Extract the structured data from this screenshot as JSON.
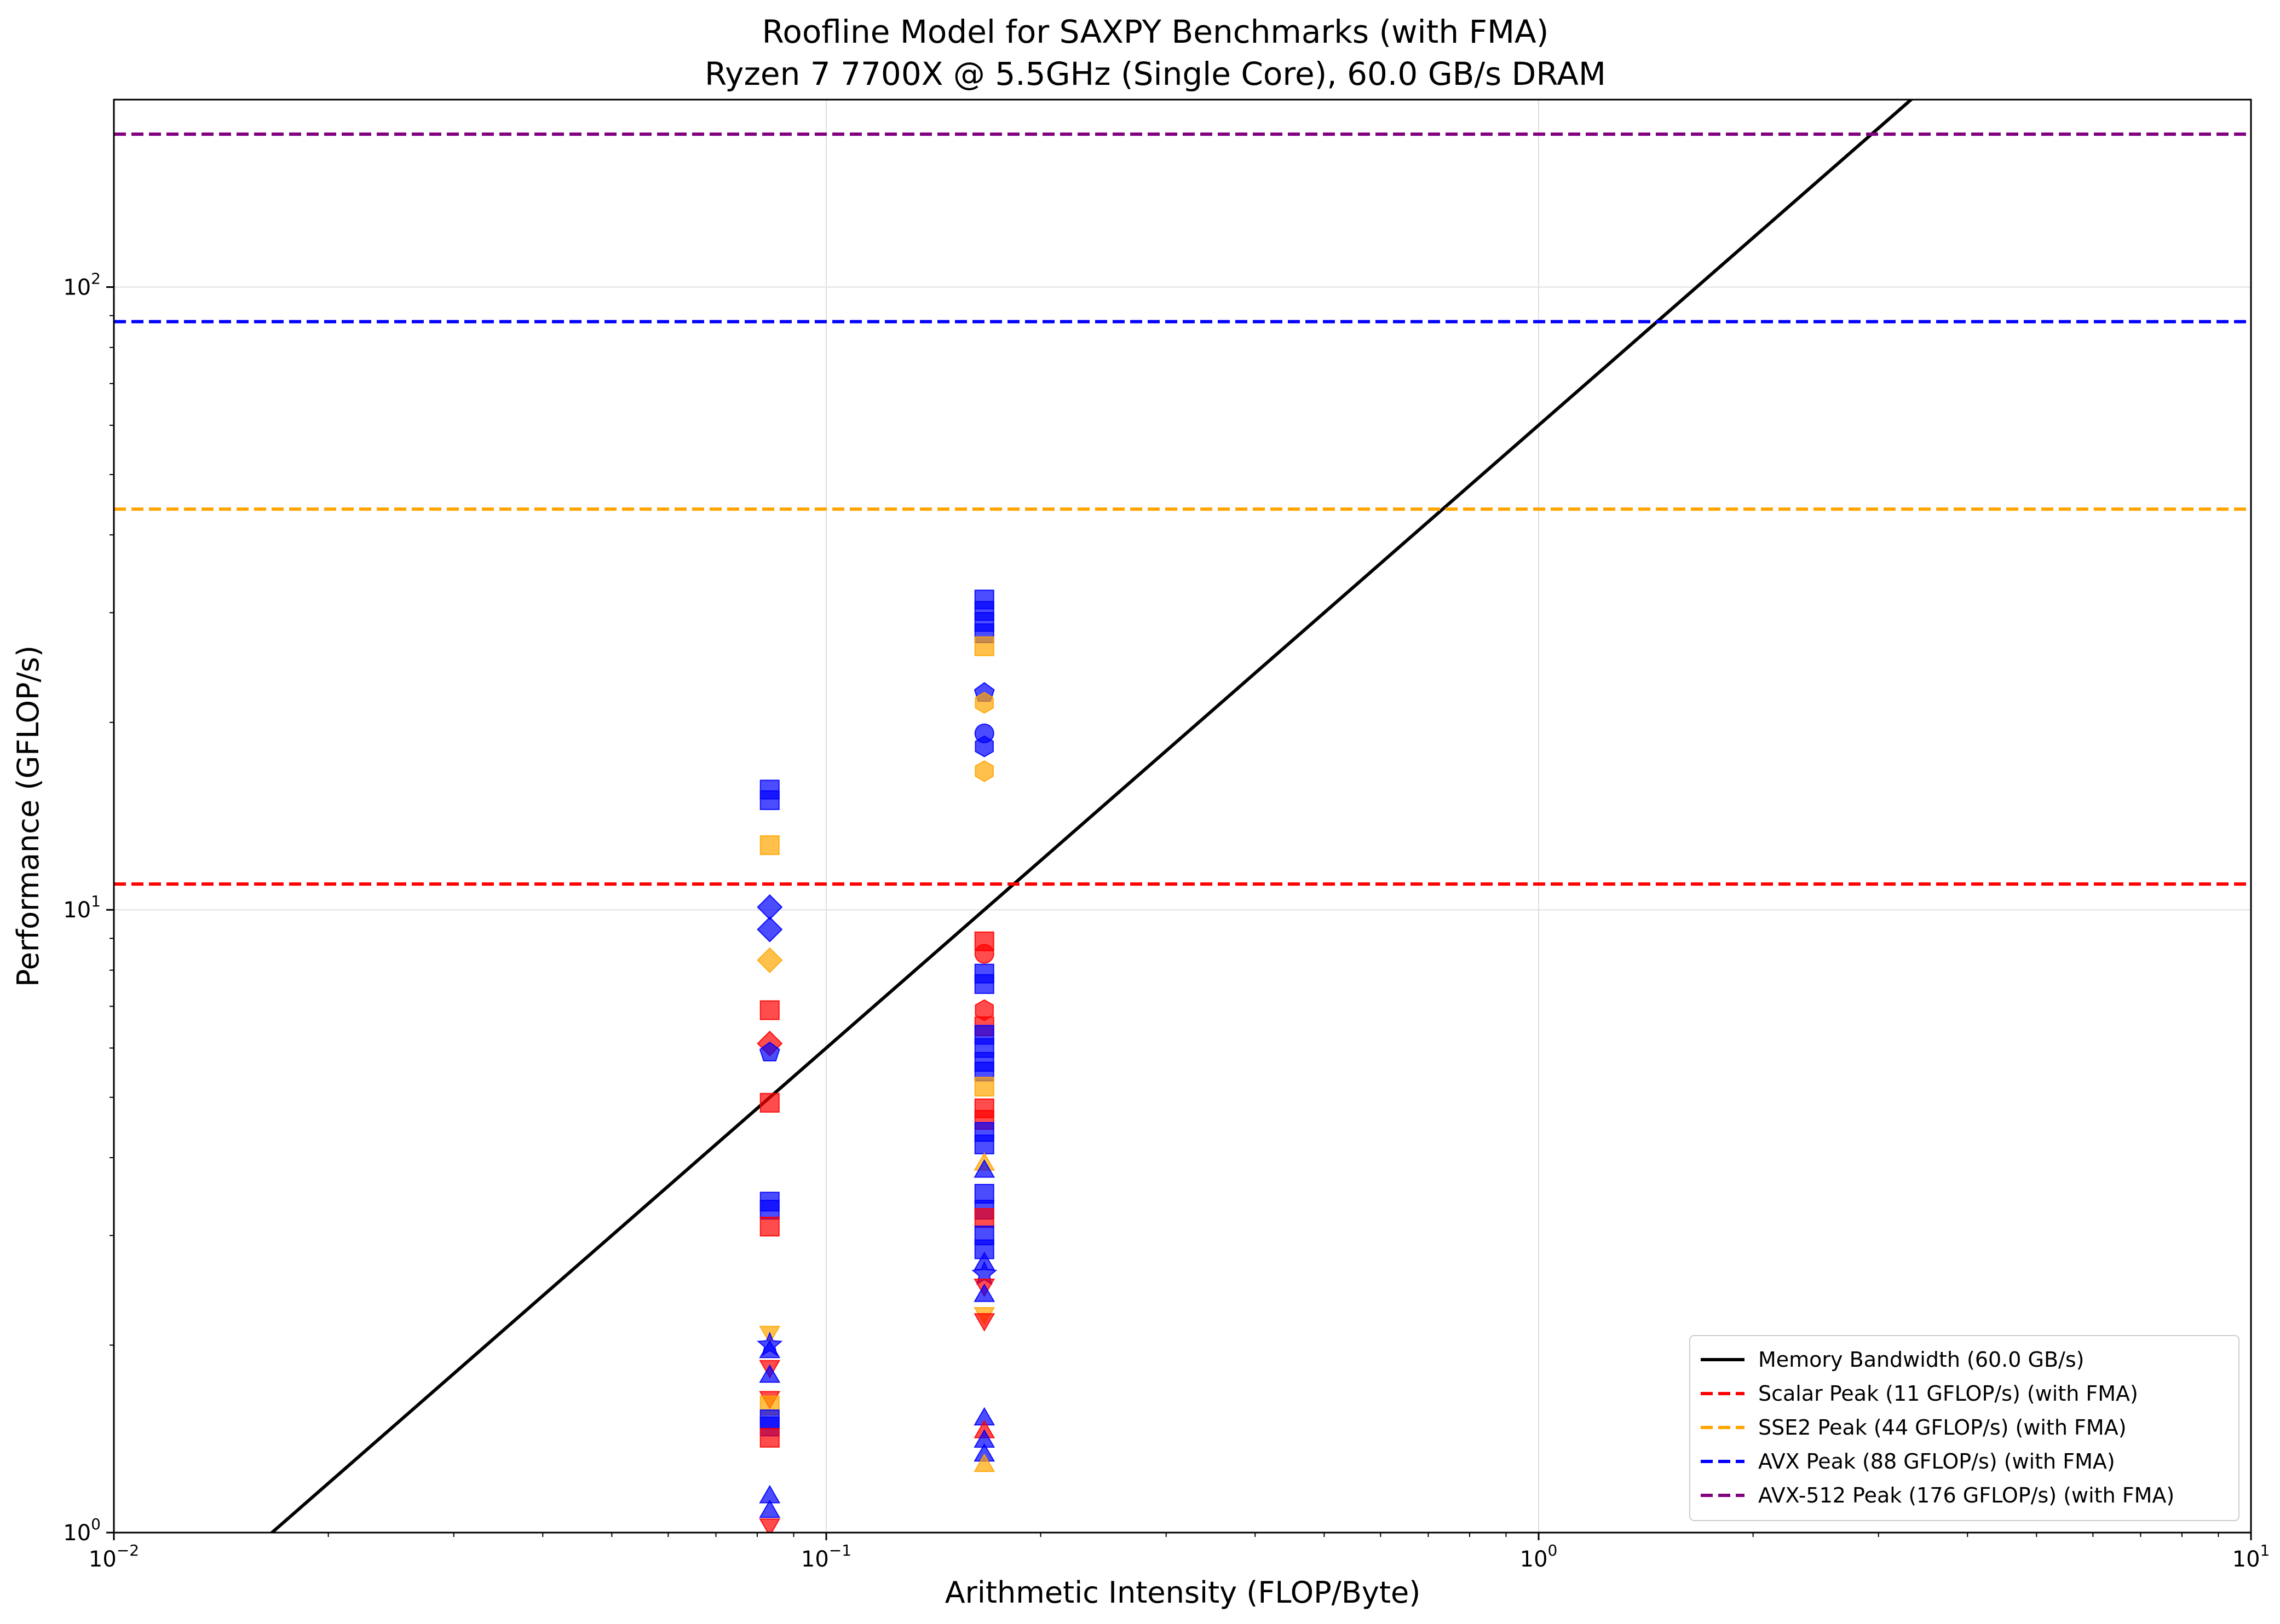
{
  "chart_data": {
    "type": "scatter",
    "title": "Roofline Model for SAXPY Benchmarks (with FMA)",
    "subtitle": "Ryzen 7 7700X @ 5.5GHz (Single Core), 60.0 GB/s DRAM",
    "xlabel": "Arithmetic Intensity (FLOP/Byte)",
    "ylabel": "Performance (GFLOP/s)",
    "x_scale": "log",
    "y_scale": "log",
    "xlim": [
      0.01,
      10
    ],
    "ylim": [
      1,
      200
    ],
    "grid": true,
    "legend_position": "lower-right",
    "x_ticks": [
      {
        "value": 0.01,
        "base": "10",
        "exp": "−2"
      },
      {
        "value": 0.1,
        "base": "10",
        "exp": "−1"
      },
      {
        "value": 1,
        "base": "10",
        "exp": "0"
      },
      {
        "value": 10,
        "base": "10",
        "exp": "1"
      }
    ],
    "y_ticks": [
      {
        "value": 1,
        "base": "10",
        "exp": "0"
      },
      {
        "value": 10,
        "base": "10",
        "exp": "1"
      },
      {
        "value": 100,
        "base": "10",
        "exp": "2"
      }
    ],
    "lines": [
      {
        "name": "Memory Bandwidth (60.0 GB/s)",
        "kind": "bandwidth",
        "bandwidth": 60.0,
        "color": "#000000",
        "dashed": false
      },
      {
        "name": "Scalar Peak (11 GFLOP/s) (with FMA)",
        "kind": "peak",
        "value": 11,
        "color": "#ff0000",
        "dashed": true
      },
      {
        "name": "SSE2 Peak (44 GFLOP/s) (with FMA)",
        "kind": "peak",
        "value": 44,
        "color": "#ffa500",
        "dashed": true
      },
      {
        "name": "AVX Peak (88 GFLOP/s) (with FMA)",
        "kind": "peak",
        "value": 88,
        "color": "#0000ff",
        "dashed": true
      },
      {
        "name": "AVX-512 Peak (176 GFLOP/s) (with FMA)",
        "kind": "peak",
        "value": 176,
        "color": "#800080",
        "dashed": true
      }
    ],
    "points": [
      {
        "x": 0.0833,
        "y": 15.6,
        "color": "#0000ff",
        "marker": "square"
      },
      {
        "x": 0.0833,
        "y": 15.0,
        "color": "#0000ff",
        "marker": "square"
      },
      {
        "x": 0.0833,
        "y": 12.7,
        "color": "#ffa500",
        "marker": "square"
      },
      {
        "x": 0.0833,
        "y": 10.1,
        "color": "#0000ff",
        "marker": "diamond"
      },
      {
        "x": 0.0833,
        "y": 9.3,
        "color": "#0000ff",
        "marker": "diamond"
      },
      {
        "x": 0.0833,
        "y": 8.3,
        "color": "#ffa500",
        "marker": "diamond"
      },
      {
        "x": 0.0833,
        "y": 6.9,
        "color": "#ff0000",
        "marker": "square"
      },
      {
        "x": 0.0833,
        "y": 6.1,
        "color": "#ff0000",
        "marker": "diamond"
      },
      {
        "x": 0.0833,
        "y": 5.9,
        "color": "#0000ff",
        "marker": "pentagon"
      },
      {
        "x": 0.0833,
        "y": 4.9,
        "color": "#ff0000",
        "marker": "square"
      },
      {
        "x": 0.0833,
        "y": 3.4,
        "color": "#0000ff",
        "marker": "square"
      },
      {
        "x": 0.0833,
        "y": 3.3,
        "color": "#0000ff",
        "marker": "square"
      },
      {
        "x": 0.0833,
        "y": 3.1,
        "color": "#ff0000",
        "marker": "square"
      },
      {
        "x": 0.0833,
        "y": 2.1,
        "color": "#ffa500",
        "marker": "triangle-down"
      },
      {
        "x": 0.0833,
        "y": 2.0,
        "color": "#0000ff",
        "marker": "star"
      },
      {
        "x": 0.0833,
        "y": 1.95,
        "color": "#0000ff",
        "marker": "triangle-up"
      },
      {
        "x": 0.0833,
        "y": 1.85,
        "color": "#ff0000",
        "marker": "triangle-down"
      },
      {
        "x": 0.0833,
        "y": 1.78,
        "color": "#0000ff",
        "marker": "triangle-up"
      },
      {
        "x": 0.0833,
        "y": 1.65,
        "color": "#ff0000",
        "marker": "triangle-down"
      },
      {
        "x": 0.0833,
        "y": 1.6,
        "color": "#ffa500",
        "marker": "square"
      },
      {
        "x": 0.0833,
        "y": 1.52,
        "color": "#0000ff",
        "marker": "square"
      },
      {
        "x": 0.0833,
        "y": 1.48,
        "color": "#0000ff",
        "marker": "square"
      },
      {
        "x": 0.0833,
        "y": 1.42,
        "color": "#ff0000",
        "marker": "square"
      },
      {
        "x": 0.0833,
        "y": 1.14,
        "color": "#0000ff",
        "marker": "triangle-up"
      },
      {
        "x": 0.0833,
        "y": 1.08,
        "color": "#0000ff",
        "marker": "triangle-up"
      },
      {
        "x": 0.0833,
        "y": 1.03,
        "color": "#ff0000",
        "marker": "triangle-down"
      },
      {
        "x": 0.1667,
        "y": 31.5,
        "color": "#0000ff",
        "marker": "square"
      },
      {
        "x": 0.1667,
        "y": 30.2,
        "color": "#0000ff",
        "marker": "square"
      },
      {
        "x": 0.1667,
        "y": 29.0,
        "color": "#0000ff",
        "marker": "square"
      },
      {
        "x": 0.1667,
        "y": 27.8,
        "color": "#0000ff",
        "marker": "square"
      },
      {
        "x": 0.1667,
        "y": 26.5,
        "color": "#ffa500",
        "marker": "square"
      },
      {
        "x": 0.1667,
        "y": 22.3,
        "color": "#0000ff",
        "marker": "pentagon"
      },
      {
        "x": 0.1667,
        "y": 21.5,
        "color": "#ffa500",
        "marker": "hexagon"
      },
      {
        "x": 0.1667,
        "y": 19.2,
        "color": "#0000ff",
        "marker": "circle"
      },
      {
        "x": 0.1667,
        "y": 18.3,
        "color": "#0000ff",
        "marker": "hexagon"
      },
      {
        "x": 0.1667,
        "y": 16.7,
        "color": "#ffa500",
        "marker": "hexagon"
      },
      {
        "x": 0.1667,
        "y": 8.9,
        "color": "#ff0000",
        "marker": "square"
      },
      {
        "x": 0.1667,
        "y": 8.5,
        "color": "#ff0000",
        "marker": "circle"
      },
      {
        "x": 0.1667,
        "y": 7.9,
        "color": "#0000ff",
        "marker": "square"
      },
      {
        "x": 0.1667,
        "y": 7.6,
        "color": "#0000ff",
        "marker": "square"
      },
      {
        "x": 0.1667,
        "y": 6.9,
        "color": "#ff0000",
        "marker": "hexagon"
      },
      {
        "x": 0.1667,
        "y": 6.5,
        "color": "#ff0000",
        "marker": "square"
      },
      {
        "x": 0.1667,
        "y": 6.3,
        "color": "#0000ff",
        "marker": "square"
      },
      {
        "x": 0.1667,
        "y": 6.0,
        "color": "#0000ff",
        "marker": "square"
      },
      {
        "x": 0.1667,
        "y": 5.7,
        "color": "#0000ff",
        "marker": "square"
      },
      {
        "x": 0.1667,
        "y": 5.5,
        "color": "#0000ff",
        "marker": "square"
      },
      {
        "x": 0.1667,
        "y": 5.2,
        "color": "#ffa500",
        "marker": "square"
      },
      {
        "x": 0.1667,
        "y": 4.8,
        "color": "#ff0000",
        "marker": "square"
      },
      {
        "x": 0.1667,
        "y": 4.6,
        "color": "#ff0000",
        "marker": "square"
      },
      {
        "x": 0.1667,
        "y": 4.4,
        "color": "#0000ff",
        "marker": "square"
      },
      {
        "x": 0.1667,
        "y": 4.2,
        "color": "#0000ff",
        "marker": "square"
      },
      {
        "x": 0.1667,
        "y": 3.9,
        "color": "#ffa500",
        "marker": "triangle-up"
      },
      {
        "x": 0.1667,
        "y": 3.8,
        "color": "#0000ff",
        "marker": "triangle-up"
      },
      {
        "x": 0.1667,
        "y": 3.5,
        "color": "#0000ff",
        "marker": "square"
      },
      {
        "x": 0.1667,
        "y": 3.3,
        "color": "#0000ff",
        "marker": "square"
      },
      {
        "x": 0.1667,
        "y": 3.2,
        "color": "#ff0000",
        "marker": "square"
      },
      {
        "x": 0.1667,
        "y": 3.0,
        "color": "#0000ff",
        "marker": "square"
      },
      {
        "x": 0.1667,
        "y": 2.85,
        "color": "#0000ff",
        "marker": "square"
      },
      {
        "x": 0.1667,
        "y": 2.7,
        "color": "#0000ff",
        "marker": "triangle-up"
      },
      {
        "x": 0.1667,
        "y": 2.6,
        "color": "#0000ff",
        "marker": "star"
      },
      {
        "x": 0.1667,
        "y": 2.5,
        "color": "#ff0000",
        "marker": "triangle-down"
      },
      {
        "x": 0.1667,
        "y": 2.4,
        "color": "#0000ff",
        "marker": "triangle-up"
      },
      {
        "x": 0.1667,
        "y": 2.25,
        "color": "#ffa500",
        "marker": "triangle-down"
      },
      {
        "x": 0.1667,
        "y": 2.2,
        "color": "#ff0000",
        "marker": "triangle-down"
      },
      {
        "x": 0.1667,
        "y": 1.52,
        "color": "#0000ff",
        "marker": "triangle-up"
      },
      {
        "x": 0.1667,
        "y": 1.45,
        "color": "#ff0000",
        "marker": "triangle-up"
      },
      {
        "x": 0.1667,
        "y": 1.4,
        "color": "#0000ff",
        "marker": "triangle-up"
      },
      {
        "x": 0.1667,
        "y": 1.33,
        "color": "#0000ff",
        "marker": "triangle-up"
      },
      {
        "x": 0.1667,
        "y": 1.28,
        "color": "#ffa500",
        "marker": "triangle-up"
      }
    ]
  }
}
